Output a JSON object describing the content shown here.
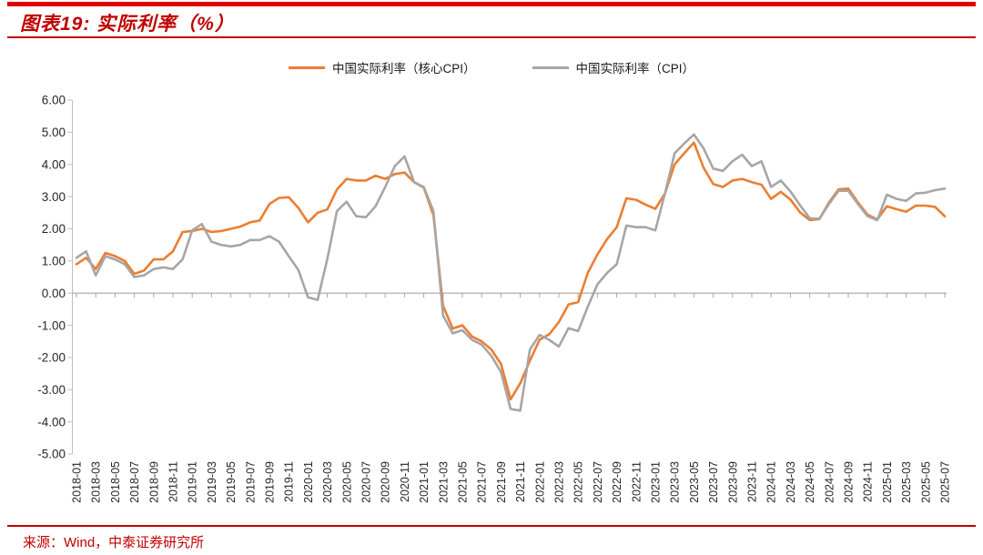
{
  "page": {
    "title": "图表19: 实际利率（%）",
    "source": "来源：Wind，中泰证券研究所"
  },
  "colors": {
    "accent_bar": "#e00000",
    "title_red": "#c00000",
    "source_red": "#c00000",
    "axis_gray": "#a6a6a6",
    "axis_light": "#bfbfbf",
    "tick_text": "#262626",
    "series_core": "#ed7d31",
    "series_cpi": "#a6a6a6"
  },
  "legend": [
    {
      "label": "中国实际利率（核心CPI）",
      "color": "#ed7d31"
    },
    {
      "label": "中国实际利率（CPI）",
      "color": "#a6a6a6"
    }
  ],
  "chart_data": {
    "type": "line",
    "title": "实际利率（%）",
    "xlabel": "",
    "ylabel": "",
    "grid": false,
    "legend_position": "top",
    "y_axis": {
      "min": -5.0,
      "max": 6.0,
      "step": 1.0,
      "tick_format": "0.00"
    },
    "x_tick_every": 2,
    "x": [
      "2018-01",
      "2018-02",
      "2018-03",
      "2018-04",
      "2018-05",
      "2018-06",
      "2018-07",
      "2018-08",
      "2018-09",
      "2018-10",
      "2018-11",
      "2018-12",
      "2019-01",
      "2019-02",
      "2019-03",
      "2019-04",
      "2019-05",
      "2019-06",
      "2019-07",
      "2019-08",
      "2019-09",
      "2019-10",
      "2019-11",
      "2019-12",
      "2020-01",
      "2020-02",
      "2020-03",
      "2020-04",
      "2020-05",
      "2020-06",
      "2020-07",
      "2020-08",
      "2020-09",
      "2020-10",
      "2020-11",
      "2020-12",
      "2021-01",
      "2021-02",
      "2021-03",
      "2021-04",
      "2021-05",
      "2021-06",
      "2021-07",
      "2021-08",
      "2021-09",
      "2021-10",
      "2021-11",
      "2021-12",
      "2022-01",
      "2022-02",
      "2022-03",
      "2022-04",
      "2022-05",
      "2022-06",
      "2022-07",
      "2022-08",
      "2022-09",
      "2022-10",
      "2022-11",
      "2022-12",
      "2023-01",
      "2023-02",
      "2023-03",
      "2023-04",
      "2023-05",
      "2023-06",
      "2023-07",
      "2023-08",
      "2023-09",
      "2023-10",
      "2023-11",
      "2023-12",
      "2024-01",
      "2024-02",
      "2024-03",
      "2024-04",
      "2024-05",
      "2024-06",
      "2024-07",
      "2024-08",
      "2024-09",
      "2024-10",
      "2024-11",
      "2024-12",
      "2025-01",
      "2025-02",
      "2025-03",
      "2025-04",
      "2025-05",
      "2025-06",
      "2025-07"
    ],
    "series": [
      {
        "name": "中国实际利率（核心CPI）",
        "color": "#ed7d31",
        "values": [
          0.9,
          1.1,
          0.75,
          1.25,
          1.15,
          1.0,
          0.6,
          0.7,
          1.05,
          1.05,
          1.3,
          1.9,
          1.93,
          2.0,
          1.9,
          1.93,
          2.0,
          2.07,
          2.2,
          2.26,
          2.77,
          2.96,
          2.98,
          2.65,
          2.2,
          2.5,
          2.6,
          3.22,
          3.55,
          3.5,
          3.5,
          3.65,
          3.55,
          3.7,
          3.75,
          3.45,
          3.28,
          2.42,
          -0.4,
          -1.1,
          -1.0,
          -1.35,
          -1.5,
          -1.75,
          -2.2,
          -3.3,
          -2.8,
          -2.1,
          -1.45,
          -1.28,
          -0.9,
          -0.35,
          -0.28,
          0.63,
          1.2,
          1.68,
          2.05,
          2.95,
          2.9,
          2.75,
          2.62,
          3.1,
          4.0,
          4.35,
          4.68,
          3.9,
          3.39,
          3.3,
          3.5,
          3.55,
          3.45,
          3.37,
          2.93,
          3.15,
          2.91,
          2.51,
          2.27,
          2.3,
          2.82,
          3.23,
          3.25,
          2.82,
          2.44,
          2.29,
          2.7,
          2.61,
          2.53,
          2.72,
          2.72,
          2.68,
          2.39
        ]
      },
      {
        "name": "中国实际利率（CPI）",
        "color": "#a6a6a6",
        "values": [
          1.1,
          1.3,
          0.55,
          1.15,
          1.05,
          0.9,
          0.5,
          0.55,
          0.75,
          0.8,
          0.75,
          1.05,
          1.95,
          2.15,
          1.6,
          1.5,
          1.45,
          1.5,
          1.65,
          1.65,
          1.77,
          1.6,
          1.15,
          0.72,
          -0.13,
          -0.21,
          1.06,
          2.55,
          2.84,
          2.39,
          2.36,
          2.7,
          3.3,
          3.95,
          4.25,
          3.45,
          3.3,
          2.55,
          -0.7,
          -1.25,
          -1.15,
          -1.45,
          -1.6,
          -1.95,
          -2.45,
          -3.6,
          -3.65,
          -1.75,
          -1.3,
          -1.45,
          -1.66,
          -1.09,
          -1.18,
          -0.42,
          0.27,
          0.63,
          0.9,
          2.1,
          2.05,
          2.05,
          1.95,
          3.1,
          4.35,
          4.65,
          4.93,
          4.5,
          3.87,
          3.8,
          4.1,
          4.3,
          3.95,
          4.1,
          3.3,
          3.5,
          3.16,
          2.73,
          2.33,
          2.31,
          2.77,
          3.18,
          3.18,
          2.77,
          2.39,
          2.27,
          3.06,
          2.93,
          2.87,
          3.1,
          3.12,
          3.2,
          3.25
        ]
      }
    ]
  }
}
